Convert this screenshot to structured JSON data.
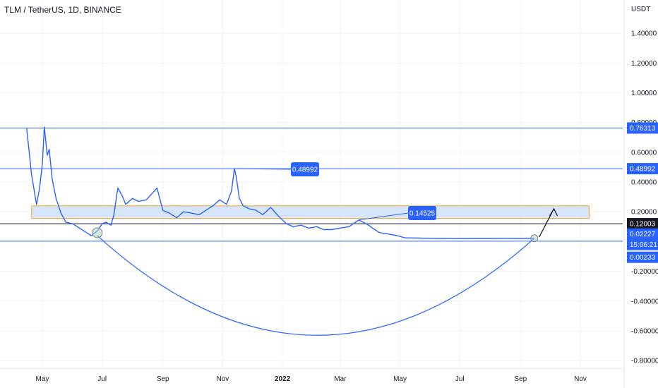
{
  "header": {
    "title": "TLM / TetherUS, 1D, BINANCE"
  },
  "chart_data": {
    "type": "line",
    "currency_label": "USDT",
    "ylim": [
      -0.8,
      1.55
    ],
    "y_ticks": [
      "1.40000",
      "1.20000",
      "1.00000",
      "0.80000",
      "0.60000",
      "0.40000",
      "0.20000",
      "-0.20000",
      "-0.40000",
      "-0.60000",
      "-0.80000"
    ],
    "y_tick_values": [
      1.4,
      1.2,
      1.0,
      0.8,
      0.6,
      0.4,
      0.2,
      -0.2,
      -0.4,
      -0.6,
      -0.8
    ],
    "x_ticks": [
      {
        "label": "May",
        "date": "2021-05-01"
      },
      {
        "label": "Jul",
        "date": "2021-07-01"
      },
      {
        "label": "Sep",
        "date": "2021-09-01"
      },
      {
        "label": "Nov",
        "date": "2021-11-01"
      },
      {
        "label": "2022",
        "date": "2022-01-01",
        "bold": true
      },
      {
        "label": "Mar",
        "date": "2022-03-01"
      },
      {
        "label": "May",
        "date": "2022-05-01"
      },
      {
        "label": "Jul",
        "date": "2022-07-01"
      },
      {
        "label": "Sep",
        "date": "2022-09-01"
      },
      {
        "label": "Nov",
        "date": "2022-11-01"
      }
    ],
    "series": [
      {
        "color": "#2962ff",
        "x": [
          "2021-04-15",
          "2021-04-20",
          "2021-04-25",
          "2021-04-28",
          "2021-05-01",
          "2021-05-03",
          "2021-05-06",
          "2021-05-08",
          "2021-05-11",
          "2021-05-15",
          "2021-05-20",
          "2021-05-25",
          "2021-06-01",
          "2021-06-08",
          "2021-06-15",
          "2021-06-20",
          "2021-06-26",
          "2021-07-01",
          "2021-07-05",
          "2021-07-10",
          "2021-07-13",
          "2021-07-17",
          "2021-07-22",
          "2021-07-25",
          "2021-08-01",
          "2021-08-07",
          "2021-08-15",
          "2021-08-22",
          "2021-08-26",
          "2021-09-01",
          "2021-09-08",
          "2021-09-15",
          "2021-09-22",
          "2021-10-01",
          "2021-10-08",
          "2021-10-15",
          "2021-10-22",
          "2021-10-29",
          "2021-11-05",
          "2021-11-10",
          "2021-11-13",
          "2021-11-15",
          "2021-11-18",
          "2021-11-22",
          "2021-11-28",
          "2021-12-05",
          "2021-12-12",
          "2021-12-20",
          "2021-12-28",
          "2022-01-05",
          "2022-01-12",
          "2022-01-20",
          "2022-01-28",
          "2022-02-05",
          "2022-02-12",
          "2022-02-20",
          "2022-02-28",
          "2022-03-10",
          "2022-03-20",
          "2022-03-30",
          "2022-04-03",
          "2022-04-10",
          "2022-04-20",
          "2022-04-28",
          "2022-05-06",
          "2022-05-12",
          "2022-05-20",
          "2022-06-01",
          "2022-06-15",
          "2022-07-01",
          "2022-07-15",
          "2022-08-01",
          "2022-08-15",
          "2022-09-01",
          "2022-09-15"
        ],
        "y": [
          0.76,
          0.45,
          0.25,
          0.35,
          0.52,
          0.77,
          0.58,
          0.62,
          0.42,
          0.29,
          0.19,
          0.13,
          0.12,
          0.09,
          0.06,
          0.04,
          0.07,
          0.12,
          0.13,
          0.11,
          0.18,
          0.36,
          0.3,
          0.25,
          0.29,
          0.27,
          0.28,
          0.33,
          0.36,
          0.21,
          0.19,
          0.16,
          0.2,
          0.19,
          0.18,
          0.21,
          0.24,
          0.28,
          0.25,
          0.34,
          0.49,
          0.43,
          0.29,
          0.24,
          0.22,
          0.21,
          0.18,
          0.23,
          0.17,
          0.12,
          0.1,
          0.11,
          0.09,
          0.1,
          0.08,
          0.08,
          0.09,
          0.1,
          0.145,
          0.11,
          0.09,
          0.06,
          0.05,
          0.04,
          0.025,
          0.024,
          0.023,
          0.022,
          0.021,
          0.02,
          0.021,
          0.021,
          0.022,
          0.021,
          0.022
        ]
      }
    ],
    "horizontal_levels": [
      {
        "value": 0.76313,
        "label": "0.76313",
        "color": "#2962ff"
      },
      {
        "value": 0.48992,
        "label": "0.48992",
        "color": "#2962ff"
      },
      {
        "value": 0.12003,
        "label": "0.12003",
        "color": "#131722"
      },
      {
        "value": 0.00233,
        "label": "0.00233",
        "color": "#2962ff"
      }
    ],
    "last_price": {
      "value": 0.02227,
      "label": "0.02227",
      "countdown": "15:06:21"
    },
    "callouts": [
      {
        "text": "0.48992",
        "date": "2021-11-13",
        "value": 0.48992
      },
      {
        "text": "0.14525",
        "date": "2022-03-20",
        "value": 0.14525
      }
    ],
    "zone": {
      "from": 0.24,
      "to": 0.155,
      "date_start": "2021-04-20",
      "date_end": "2022-11-10"
    },
    "arc": {
      "start_date": "2021-06-26",
      "start_value": 0.04,
      "end_date": "2022-09-15",
      "end_value": 0.022,
      "bottom_value": -0.63
    },
    "arrow": {
      "from_date": "2022-09-20",
      "from_value": 0.03,
      "to_date": "2022-10-05",
      "to_value": 0.22
    },
    "colors": {
      "accent": "#2962ff",
      "zone_fill": "#cfe0fb",
      "zone_border": "#f5a623",
      "black_level": "#131722"
    }
  }
}
